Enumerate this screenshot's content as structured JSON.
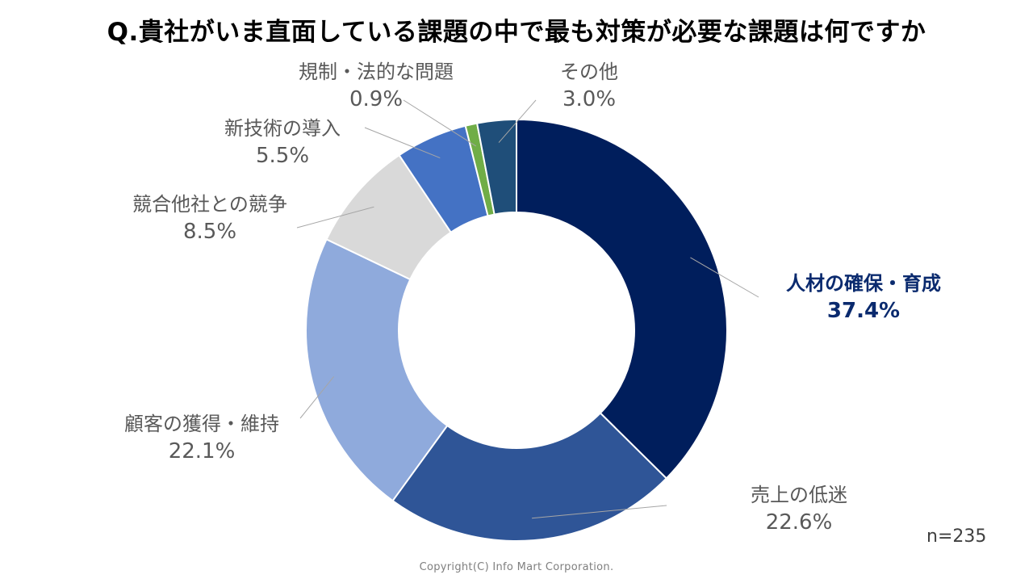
{
  "title": "Q.貴社がいま直面している課題の中で最も対策が必要な課題は何ですか",
  "sample_size": "n=235",
  "copyright": "Copyright(C) Info Mart Corporation.",
  "chart_data": {
    "type": "pie",
    "variant": "donut",
    "start": "top, clockwise",
    "slices": [
      {
        "label": "人材の確保・育成",
        "value": 37.4,
        "value_label": "37.4%",
        "color": "#001e5c"
      },
      {
        "label": "売上の低迷",
        "value": 22.6,
        "value_label": "22.6%",
        "color": "#2f5597"
      },
      {
        "label": "顧客の獲得・維持",
        "value": 22.1,
        "value_label": "22.1%",
        "color": "#8faadc"
      },
      {
        "label": "競合他社との競争",
        "value": 8.5,
        "value_label": "8.5%",
        "color": "#d9d9d9"
      },
      {
        "label": "新技術の導入",
        "value": 5.5,
        "value_label": "5.5%",
        "color": "#4472c4"
      },
      {
        "label": "規制・法的な問題",
        "value": 0.9,
        "value_label": "0.9%",
        "color": "#70ad47"
      },
      {
        "label": "その他",
        "value": 3.0,
        "value_label": "3.0%",
        "color": "#1f4e79"
      }
    ]
  }
}
